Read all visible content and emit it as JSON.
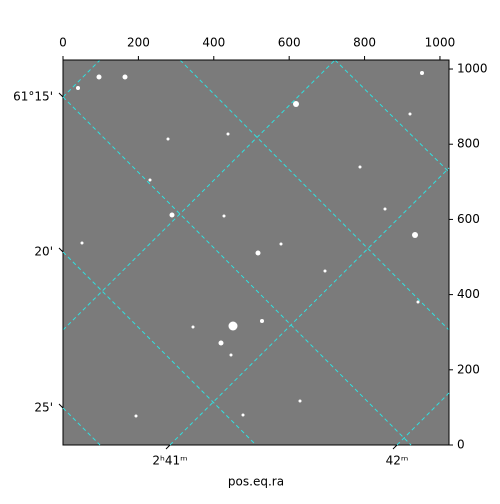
{
  "chart_data": {
    "type": "image",
    "xlabel": "pos.eq.ra",
    "xlim": [
      0,
      1024
    ],
    "xticks": [
      0,
      200,
      400,
      600,
      800,
      1000
    ],
    "ylim": [
      0,
      1024
    ],
    "yticks": [
      0,
      200,
      400,
      600,
      800,
      1000
    ],
    "ra_ticks": [
      {
        "value": 40.25,
        "label": "2ʰ41ᵐ"
      },
      {
        "value": 40.5,
        "label": "42ᵐ"
      }
    ],
    "dec_ticks": [
      {
        "value": 61.25,
        "label": "61°15'"
      },
      {
        "value": 61.3333,
        "label": "20'"
      },
      {
        "value": 61.4167,
        "label": "25'"
      }
    ],
    "grid": true,
    "grid_color": "#2fe0e0"
  }
}
